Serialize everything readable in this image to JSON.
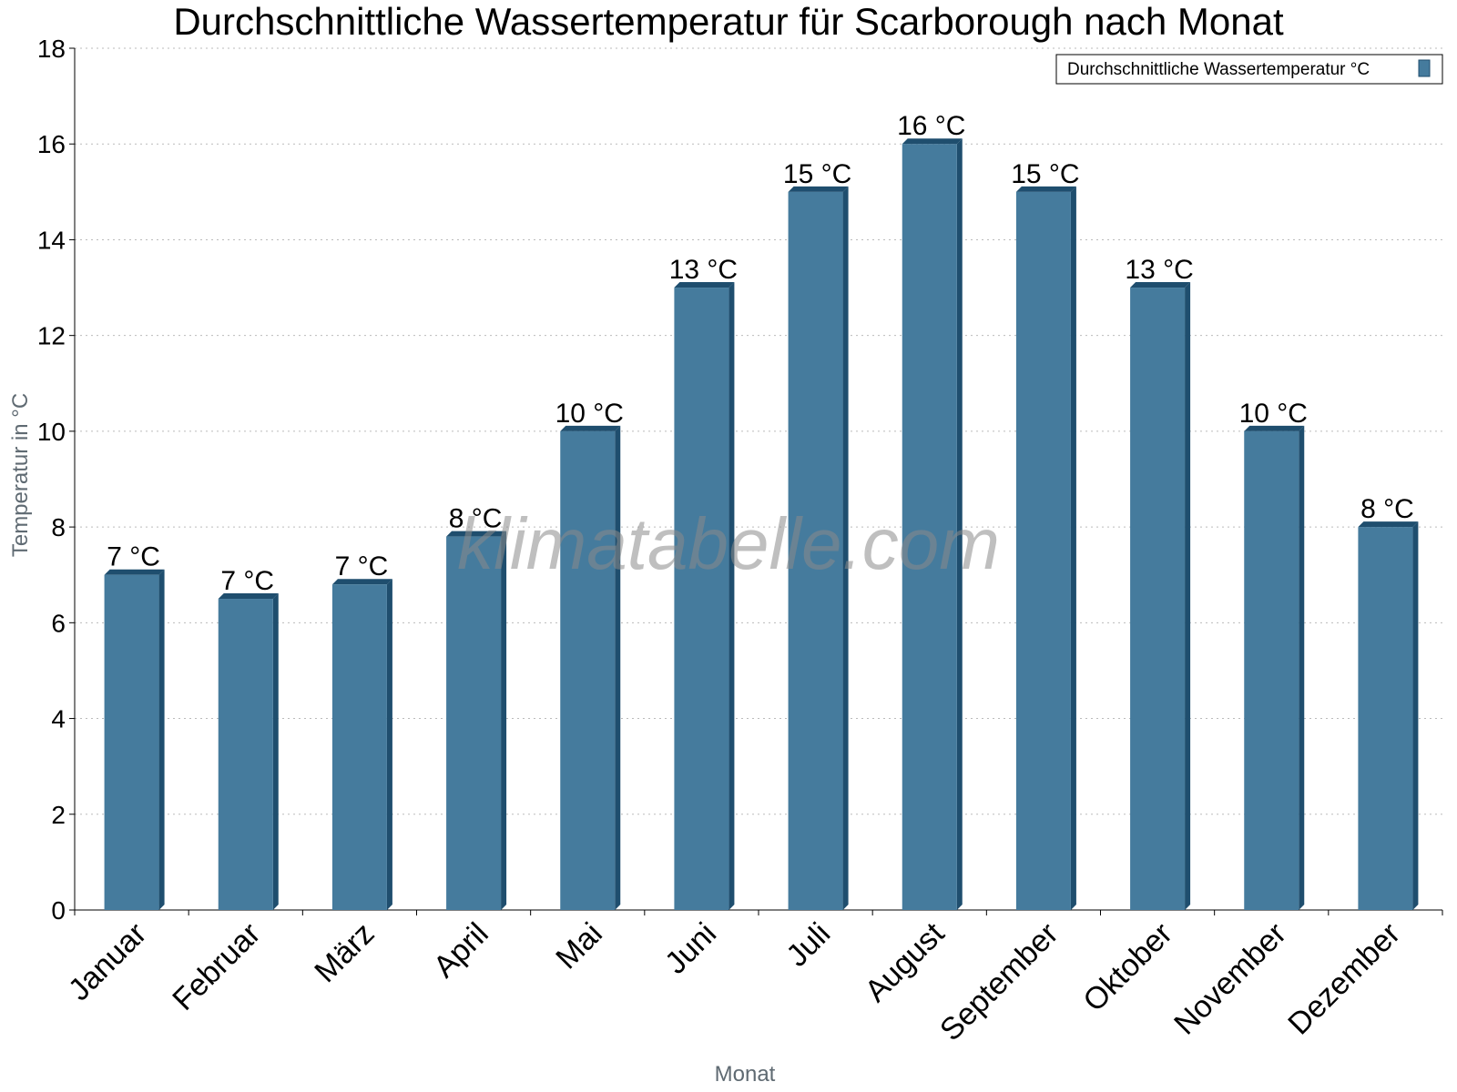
{
  "chart_data": {
    "type": "bar",
    "title": "Durchschnittliche Wassertemperatur für Scarborough nach Monat",
    "xlabel": "Monat",
    "ylabel": "Temperatur in °C",
    "categories": [
      "Januar",
      "Februar",
      "März",
      "April",
      "Mai",
      "Juni",
      "Juli",
      "August",
      "September",
      "Oktober",
      "November",
      "Dezember"
    ],
    "series": [
      {
        "name": "Durchschnittliche Wassertemperatur °C",
        "values": [
          7.0,
          6.5,
          6.8,
          7.8,
          10.0,
          13.0,
          15.0,
          16.0,
          15.0,
          13.0,
          10.0,
          8.0
        ],
        "labels": [
          "7 °C",
          "7 °C",
          "7 °C",
          "8 °C",
          "10 °C",
          "13 °C",
          "15 °C",
          "16 °C",
          "15 °C",
          "13 °C",
          "10 °C",
          "8 °C"
        ],
        "color": "#457b9d",
        "side_color": "#1f4e6e"
      }
    ],
    "ylim": [
      0,
      18
    ],
    "yticks": [
      "0",
      "2",
      "4",
      "6",
      "8",
      "10",
      "12",
      "14",
      "16",
      "18"
    ],
    "grid": true,
    "legend_position": "top-right",
    "watermark": "klimatabelle.com"
  }
}
